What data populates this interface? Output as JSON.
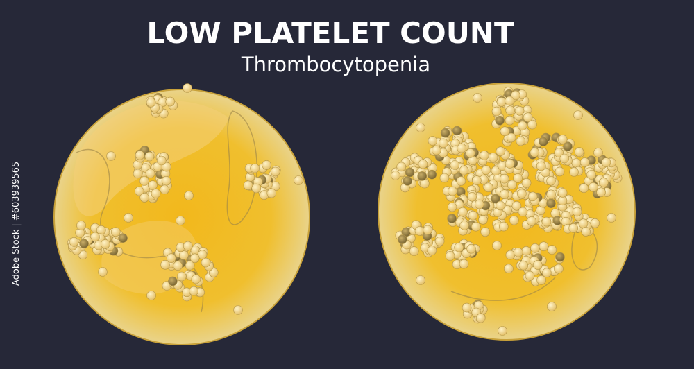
{
  "header": {
    "title": "LOW PLATELET COUNT",
    "subtitle": "Thrombocytopenia"
  },
  "credit": {
    "text": "Adobe Stock | #603939565"
  }
}
